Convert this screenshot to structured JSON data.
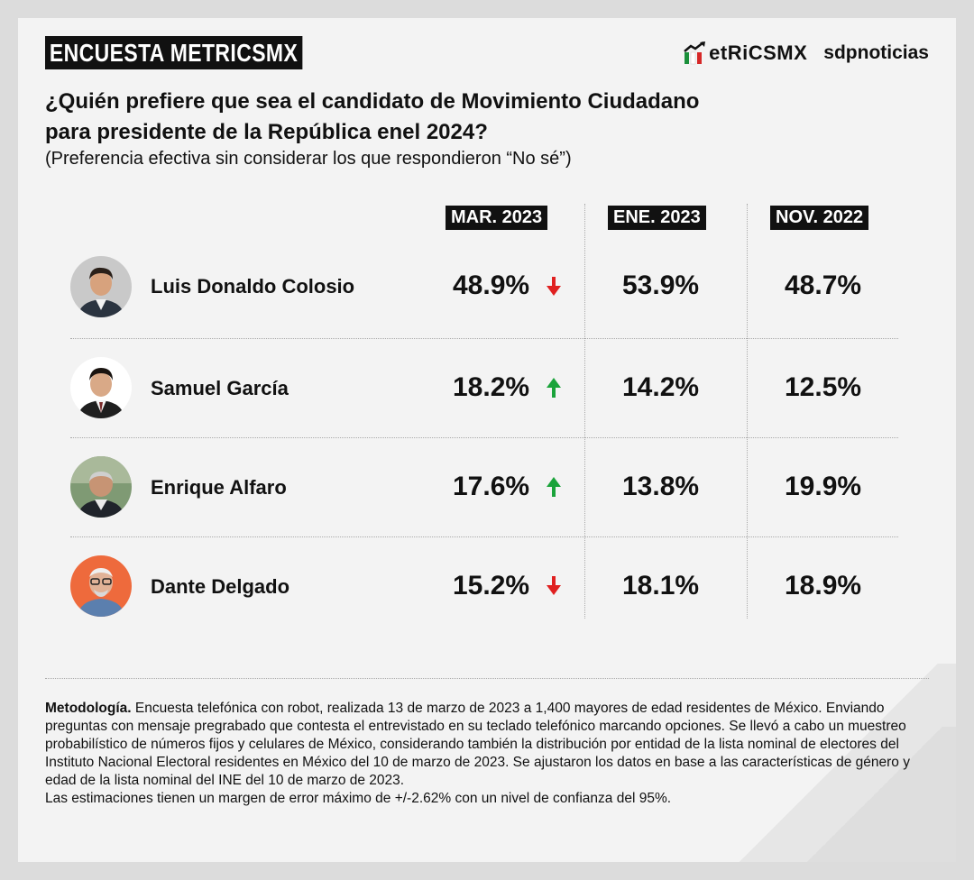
{
  "header": {
    "badge": "ENCUESTA METRICSMX",
    "logo_metrics": "etRiCSMX",
    "logo_sdp": "sdpnoticias"
  },
  "question": {
    "line1": "¿Quién prefiere que sea el candidato de Movimiento Ciudadano",
    "line2": "para presidente de la República enel 2024?",
    "subtitle": "(Preferencia efectiva sin considerar los que respondieron “No sé”)"
  },
  "chart_data": {
    "type": "table",
    "columns": [
      "MAR. 2023",
      "ENE. 2023",
      "NOV. 2022"
    ],
    "rows": [
      {
        "name": "Luis Donaldo Colosio",
        "values": [
          "48.9%",
          "53.9%",
          "48.7%"
        ],
        "trend": "down"
      },
      {
        "name": "Samuel García",
        "values": [
          "18.2%",
          "14.2%",
          "12.5%"
        ],
        "trend": "up"
      },
      {
        "name": "Enrique Alfaro",
        "values": [
          "17.6%",
          "13.8%",
          "19.9%"
        ],
        "trend": "up"
      },
      {
        "name": "Dante Delgado",
        "values": [
          "15.2%",
          "18.1%",
          "18.9%"
        ],
        "trend": "down"
      }
    ]
  },
  "colors": {
    "up": "#1aa33a",
    "down": "#e02020",
    "badge": "#111111"
  },
  "methodology": {
    "label": "Metodología.",
    "text": " Encuesta telefónica con robot, realizada 13 de marzo de 2023 a 1,400 mayores de edad residentes de México. Enviando preguntas con mensaje pregrabado que contesta el entrevistado en su teclado telefónico marcando opciones. Se llevó a cabo un muestreo probabilístico de números fijos y celulares de México, considerando también la distribución por entidad de la lista nominal de electores del Instituto Nacional Electoral residentes en México del 10 de marzo de 2023. Se ajustaron los datos en base a las características de género y edad de la lista nominal del INE del 10 de marzo de 2023.",
    "margin": "Las estimaciones tienen un margen de error máximo de +/-2.62% con un nivel de confianza del 95%."
  }
}
